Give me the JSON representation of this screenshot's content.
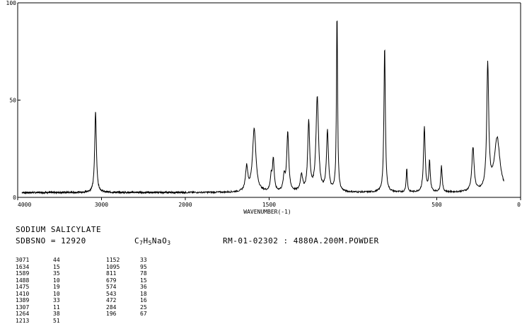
{
  "chart_data": {
    "type": "line",
    "title": "",
    "xlabel": "WAVENUMBER(-1)",
    "ylabel": "",
    "xlim": [
      4000,
      0
    ],
    "ylim": [
      0,
      100
    ],
    "x_ticks": [
      4000,
      3000,
      2000,
      1500,
      500,
      0
    ],
    "x_tick_labels": [
      "4000",
      "3000",
      "2000",
      "1500",
      "500",
      "0"
    ],
    "y_ticks": [
      0,
      50,
      100
    ],
    "y_tick_labels": [
      "0",
      "50",
      "100"
    ],
    "grid": false,
    "baseline": 2.5,
    "peaks": [
      {
        "x": 3071,
        "y": 44,
        "w": 12
      },
      {
        "x": 1634,
        "y": 15,
        "w": 8
      },
      {
        "x": 1589,
        "y": 35,
        "w": 12
      },
      {
        "x": 1488,
        "y": 10,
        "w": 6
      },
      {
        "x": 1475,
        "y": 19,
        "w": 6
      },
      {
        "x": 1410,
        "y": 10,
        "w": 7
      },
      {
        "x": 1389,
        "y": 33,
        "w": 7
      },
      {
        "x": 1307,
        "y": 11,
        "w": 8
      },
      {
        "x": 1264,
        "y": 38,
        "w": 7
      },
      {
        "x": 1213,
        "y": 51,
        "w": 9
      },
      {
        "x": 1152,
        "y": 33,
        "w": 7
      },
      {
        "x": 1095,
        "y": 95,
        "w": 4
      },
      {
        "x": 811,
        "y": 78,
        "w": 5
      },
      {
        "x": 679,
        "y": 15,
        "w": 4
      },
      {
        "x": 574,
        "y": 36,
        "w": 6
      },
      {
        "x": 543,
        "y": 18,
        "w": 5
      },
      {
        "x": 472,
        "y": 16,
        "w": 5
      },
      {
        "x": 284,
        "y": 25,
        "w": 8
      },
      {
        "x": 196,
        "y": 67,
        "w": 7
      },
      {
        "x": 140,
        "y": 30,
        "w": 20
      }
    ]
  },
  "info": {
    "compound": "SODIUM SALICYLATE",
    "sdbs": "SDBSNO = 12920",
    "formula_c": "C",
    "formula_c_n": "7",
    "formula_h": "H",
    "formula_h_n": "5",
    "formula_rest": "NaO",
    "formula_o_n": "3",
    "method": "RM-01-02302 : 4880A.200M.POWDER"
  },
  "peak_table": {
    "col1_x": [
      "3071",
      "1634",
      "1589",
      "1488",
      "1475",
      "1410",
      "1389",
      "1307",
      "1264",
      "1213"
    ],
    "col1_y": [
      "44",
      "15",
      "35",
      "10",
      "19",
      "10",
      "33",
      "11",
      "38",
      "51"
    ],
    "col2_x": [
      "1152",
      "1095",
      "811",
      "679",
      "574",
      "543",
      "472",
      "284",
      "196"
    ],
    "col2_y": [
      "33",
      "95",
      "78",
      "15",
      "36",
      "18",
      "16",
      "25",
      "67"
    ]
  }
}
